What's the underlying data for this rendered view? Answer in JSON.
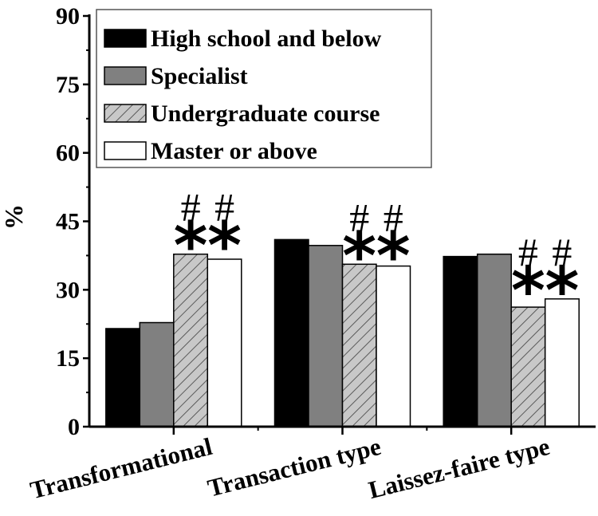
{
  "chart_data": {
    "type": "bar",
    "ylabel": "%",
    "ylim": [
      0,
      90
    ],
    "yticks": [
      "0",
      "15",
      "30",
      "45",
      "60",
      "75",
      "90"
    ],
    "categories": [
      "Transformational",
      "Transaction type",
      "Laissez-faire type"
    ],
    "series": [
      {
        "name": "High school and below",
        "values": [
          21.5,
          41.0,
          37.3
        ],
        "fill": "#000000",
        "pattern": "solid"
      },
      {
        "name": "Specialist",
        "values": [
          22.8,
          39.7,
          37.8
        ],
        "fill": "#808080",
        "pattern": "solid"
      },
      {
        "name": "Undergraduate course",
        "values": [
          37.8,
          35.6,
          26.2
        ],
        "fill": "#c8c8c8",
        "pattern": "hatch"
      },
      {
        "name": "Master or above",
        "values": [
          36.7,
          35.2,
          28.0
        ],
        "fill": "#ffffff",
        "pattern": "solid"
      }
    ],
    "annotations": [
      {
        "category_index": 0,
        "hash": "##",
        "star": "**"
      },
      {
        "category_index": 1,
        "hash": "##",
        "star": "**"
      },
      {
        "category_index": 2,
        "hash": "##",
        "star": "**"
      }
    ],
    "legend_position": "top-left",
    "grid": false
  }
}
